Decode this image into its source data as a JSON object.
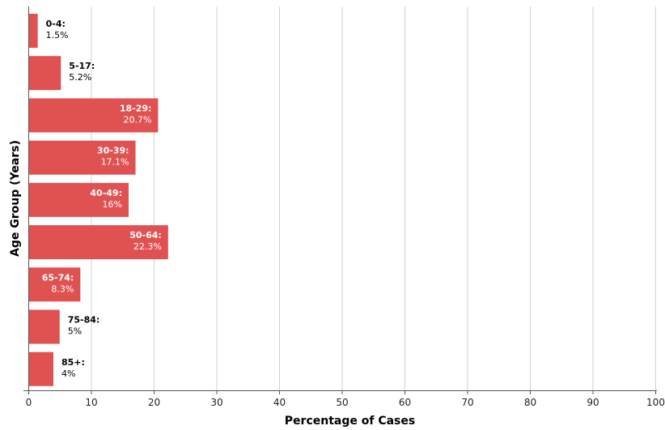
{
  "chart_data": {
    "type": "bar",
    "orientation": "horizontal",
    "categories": [
      "0-4",
      "5-17",
      "18-29",
      "30-39",
      "40-49",
      "50-64",
      "65-74",
      "75-84",
      "85+"
    ],
    "value_labels": [
      "1.5%",
      "5.2%",
      "20.7%",
      "17.1%",
      "16%",
      "22.3%",
      "8.3%",
      "5%",
      "4%"
    ],
    "values": [
      1.5,
      5.2,
      20.7,
      17.1,
      16,
      22.3,
      8.3,
      5,
      4
    ],
    "xlabel": "Percentage of Cases",
    "ylabel": "Age Group (Years)",
    "xlim": [
      0,
      100
    ],
    "xticks": [
      "0",
      "10",
      "20",
      "30",
      "40",
      "50",
      "60",
      "70",
      "80",
      "90",
      "100"
    ],
    "grid": "vertical",
    "bar_color": "#e05252",
    "inside_label_color": "#ffffff",
    "outside_label_color": "#000000"
  }
}
